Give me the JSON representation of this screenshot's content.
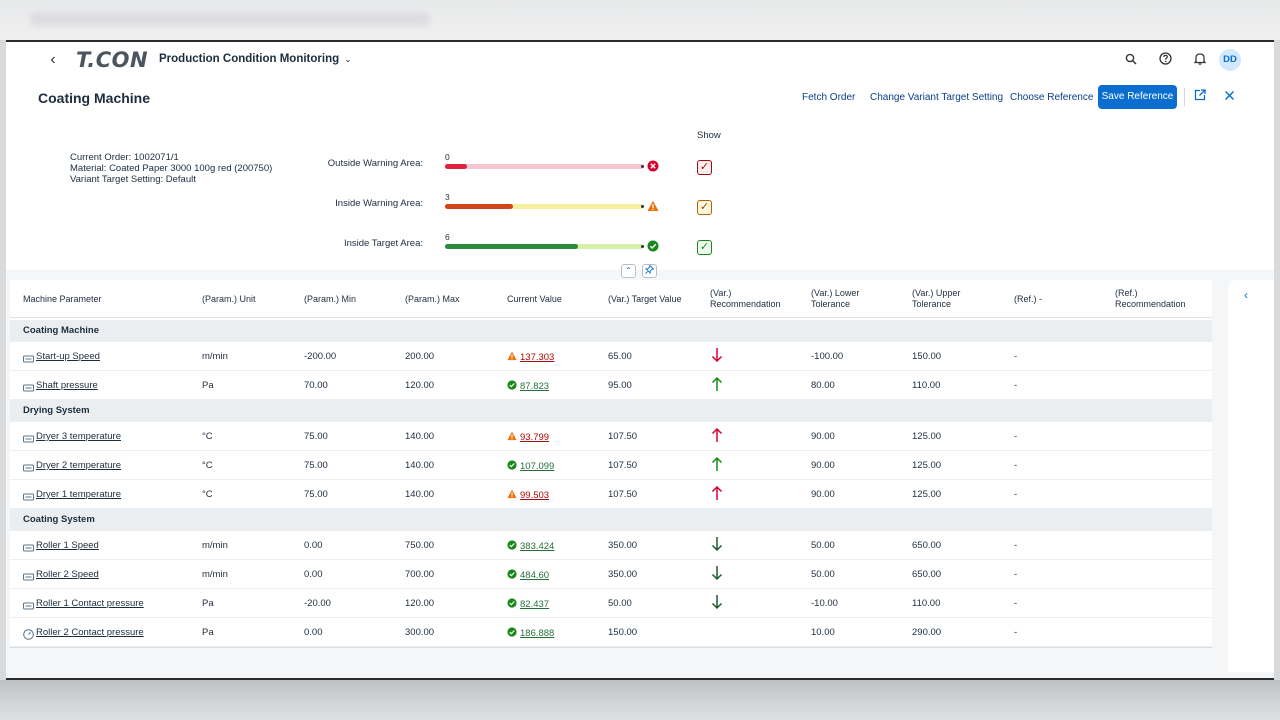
{
  "shell": {
    "logo": "T.CON",
    "app_title": "Production Condition Monitoring",
    "avatar_initials": "DD"
  },
  "header": {
    "title": "Coating Machine",
    "actions": {
      "fetch_order": "Fetch Order",
      "change_variant": "Change Variant Target Setting",
      "choose_reference": "Choose Reference",
      "save_reference": "Save Reference"
    },
    "info": {
      "order": "Current Order: 1002071/1",
      "material": "Material: Coated Paper 3000 100g red (200750)",
      "variant": "Variant Target Setting: Default"
    },
    "show_label": "Show",
    "areas": [
      {
        "label": "Outside Warning Area:",
        "count": "0",
        "fraction": 0.11,
        "checked": true
      },
      {
        "label": "Inside Warning Area:",
        "count": "3",
        "fraction": 0.34,
        "checked": true
      },
      {
        "label": "Inside Target Area:",
        "count": "6",
        "fraction": 0.67,
        "checked": true
      }
    ]
  },
  "colors": {
    "brand": "#0a6ed1",
    "error": "#d6002f",
    "warning": "#e9730c",
    "success": "#188918",
    "negative_value": "#aa0808",
    "positive_value": "#256f3a"
  },
  "table": {
    "columns": [
      "Machine Parameter",
      "(Param.) Unit",
      "(Param.) Min",
      "(Param.) Max",
      "Current Value",
      "(Var.) Target Value",
      "(Var.) Recommendation",
      "(Var.) Lower Tolerance",
      "(Var.) Upper Tolerance",
      "(Ref.) -",
      "(Ref.) Recommendation"
    ],
    "groups": [
      {
        "name": "Coating Machine",
        "rows": [
          {
            "param": "Start-up Speed",
            "unit": "m/min",
            "min": "-200.00",
            "max": "200.00",
            "value": "137.303",
            "status": "warning",
            "target": "65.00",
            "rec": "down",
            "lower": "-100.00",
            "upper": "150.00",
            "ref": "-"
          },
          {
            "param": "Shaft pressure",
            "unit": "Pa",
            "min": "70.00",
            "max": "120.00",
            "value": "87.823",
            "status": "ok",
            "target": "95.00",
            "rec": "up",
            "lower": "80.00",
            "upper": "110.00",
            "ref": "-"
          }
        ]
      },
      {
        "name": "Drying System",
        "rows": [
          {
            "param": "Dryer 3 temperature",
            "unit": "°C",
            "min": "75.00",
            "max": "140.00",
            "value": "93.799",
            "status": "warning",
            "target": "107.50",
            "rec": "up",
            "lower": "90.00",
            "upper": "125.00",
            "ref": "-"
          },
          {
            "param": "Dryer 2 temperature",
            "unit": "°C",
            "min": "75.00",
            "max": "140.00",
            "value": "107.099",
            "status": "ok",
            "target": "107.50",
            "rec": "up",
            "lower": "90.00",
            "upper": "125.00",
            "ref": "-"
          },
          {
            "param": "Dryer 1 temperature",
            "unit": "°C",
            "min": "75.00",
            "max": "140.00",
            "value": "99.503",
            "status": "warning",
            "target": "107.50",
            "rec": "up",
            "lower": "90.00",
            "upper": "125.00",
            "ref": "-"
          }
        ]
      },
      {
        "name": "Coating System",
        "rows": [
          {
            "param": "Roller 1 Speed",
            "unit": "m/min",
            "min": "0.00",
            "max": "750.00",
            "value": "383.424",
            "status": "ok",
            "target": "350.00",
            "rec": "down",
            "lower": "50.00",
            "upper": "650.00",
            "ref": "-"
          },
          {
            "param": "Roller 2 Speed",
            "unit": "m/min",
            "min": "0.00",
            "max": "700.00",
            "value": "484.60",
            "status": "ok",
            "target": "350.00",
            "rec": "down",
            "lower": "50.00",
            "upper": "650.00",
            "ref": "-"
          },
          {
            "param": "Roller 1 Contact pressure",
            "unit": "Pa",
            "min": "-20.00",
            "max": "120.00",
            "value": "82.437",
            "status": "ok",
            "target": "50.00",
            "rec": "down",
            "lower": "-10.00",
            "upper": "110.00",
            "ref": "-"
          },
          {
            "param": "Roller 2 Contact pressure",
            "unit": "Pa",
            "min": "0.00",
            "max": "300.00",
            "value": "186.888",
            "status": "ok",
            "target": "150.00",
            "rec": "none",
            "lower": "10.00",
            "upper": "290.00",
            "ref": "-"
          }
        ]
      }
    ]
  }
}
